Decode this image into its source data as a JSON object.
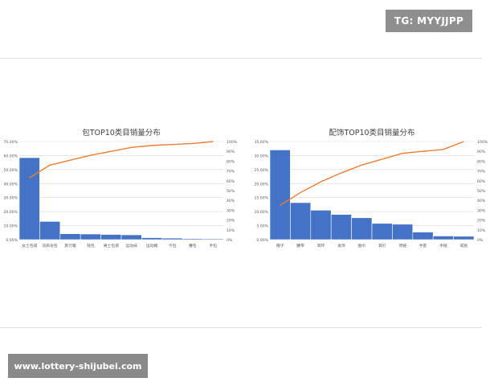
{
  "watermark_top": "TG: MYYJJPP",
  "watermark_bottom": "www.lottery-shijubei.com",
  "colors": {
    "bar": "#4472c4",
    "line": "#ed7d31",
    "grid": "#d9d9d9",
    "text": "#595959"
  },
  "chart_data": [
    {
      "type": "bar",
      "title": "包TOP10类目销量分布",
      "categories": [
        "女士包袋",
        "双肩背包",
        "旅行箱",
        "钱包",
        "男士包袋",
        "运动袜",
        "运动箱",
        "卡包",
        "腰包",
        "手包"
      ],
      "values": [
        58.5,
        13.0,
        4.2,
        4.0,
        3.7,
        3.4,
        1.4,
        1.1,
        0.7,
        0.6
      ],
      "cumulative": [
        63,
        76,
        81,
        86,
        90,
        94,
        96,
        97,
        98,
        100
      ],
      "ylim": [
        0,
        70
      ],
      "y_ticks": [
        "0.00%",
        "10.00%",
        "20.00%",
        "30.00%",
        "40.00%",
        "50.00%",
        "60.00%",
        "70.00%"
      ],
      "y2lim": [
        0,
        100
      ],
      "y2_ticks": [
        "0%",
        "10%",
        "20%",
        "30%",
        "40%",
        "50%",
        "60%",
        "70%",
        "80%",
        "90%",
        "100%"
      ],
      "grid": true,
      "legend": "none"
    },
    {
      "type": "bar",
      "title": "配饰TOP10类目销量分布",
      "categories": [
        "帽子",
        "腰带",
        "耳环",
        "发饰",
        "围巾",
        "耳钉",
        "项链",
        "手套",
        "手链",
        "戒指"
      ],
      "values": [
        32.0,
        13.2,
        10.5,
        9.0,
        7.8,
        5.8,
        5.5,
        2.7,
        1.3,
        1.2
      ],
      "cumulative": [
        35,
        48,
        59,
        68,
        76,
        82,
        88,
        90,
        92,
        100
      ],
      "ylim": [
        0,
        35
      ],
      "y_ticks": [
        "0.00%",
        "5.00%",
        "10.00%",
        "15.00%",
        "20.00%",
        "25.00%",
        "30.00%",
        "35.00%"
      ],
      "y2lim": [
        0,
        100
      ],
      "y2_ticks": [
        "0%",
        "10%",
        "20%",
        "30%",
        "40%",
        "50%",
        "60%",
        "70%",
        "80%",
        "90%",
        "100%"
      ],
      "grid": true,
      "legend": "none"
    }
  ]
}
